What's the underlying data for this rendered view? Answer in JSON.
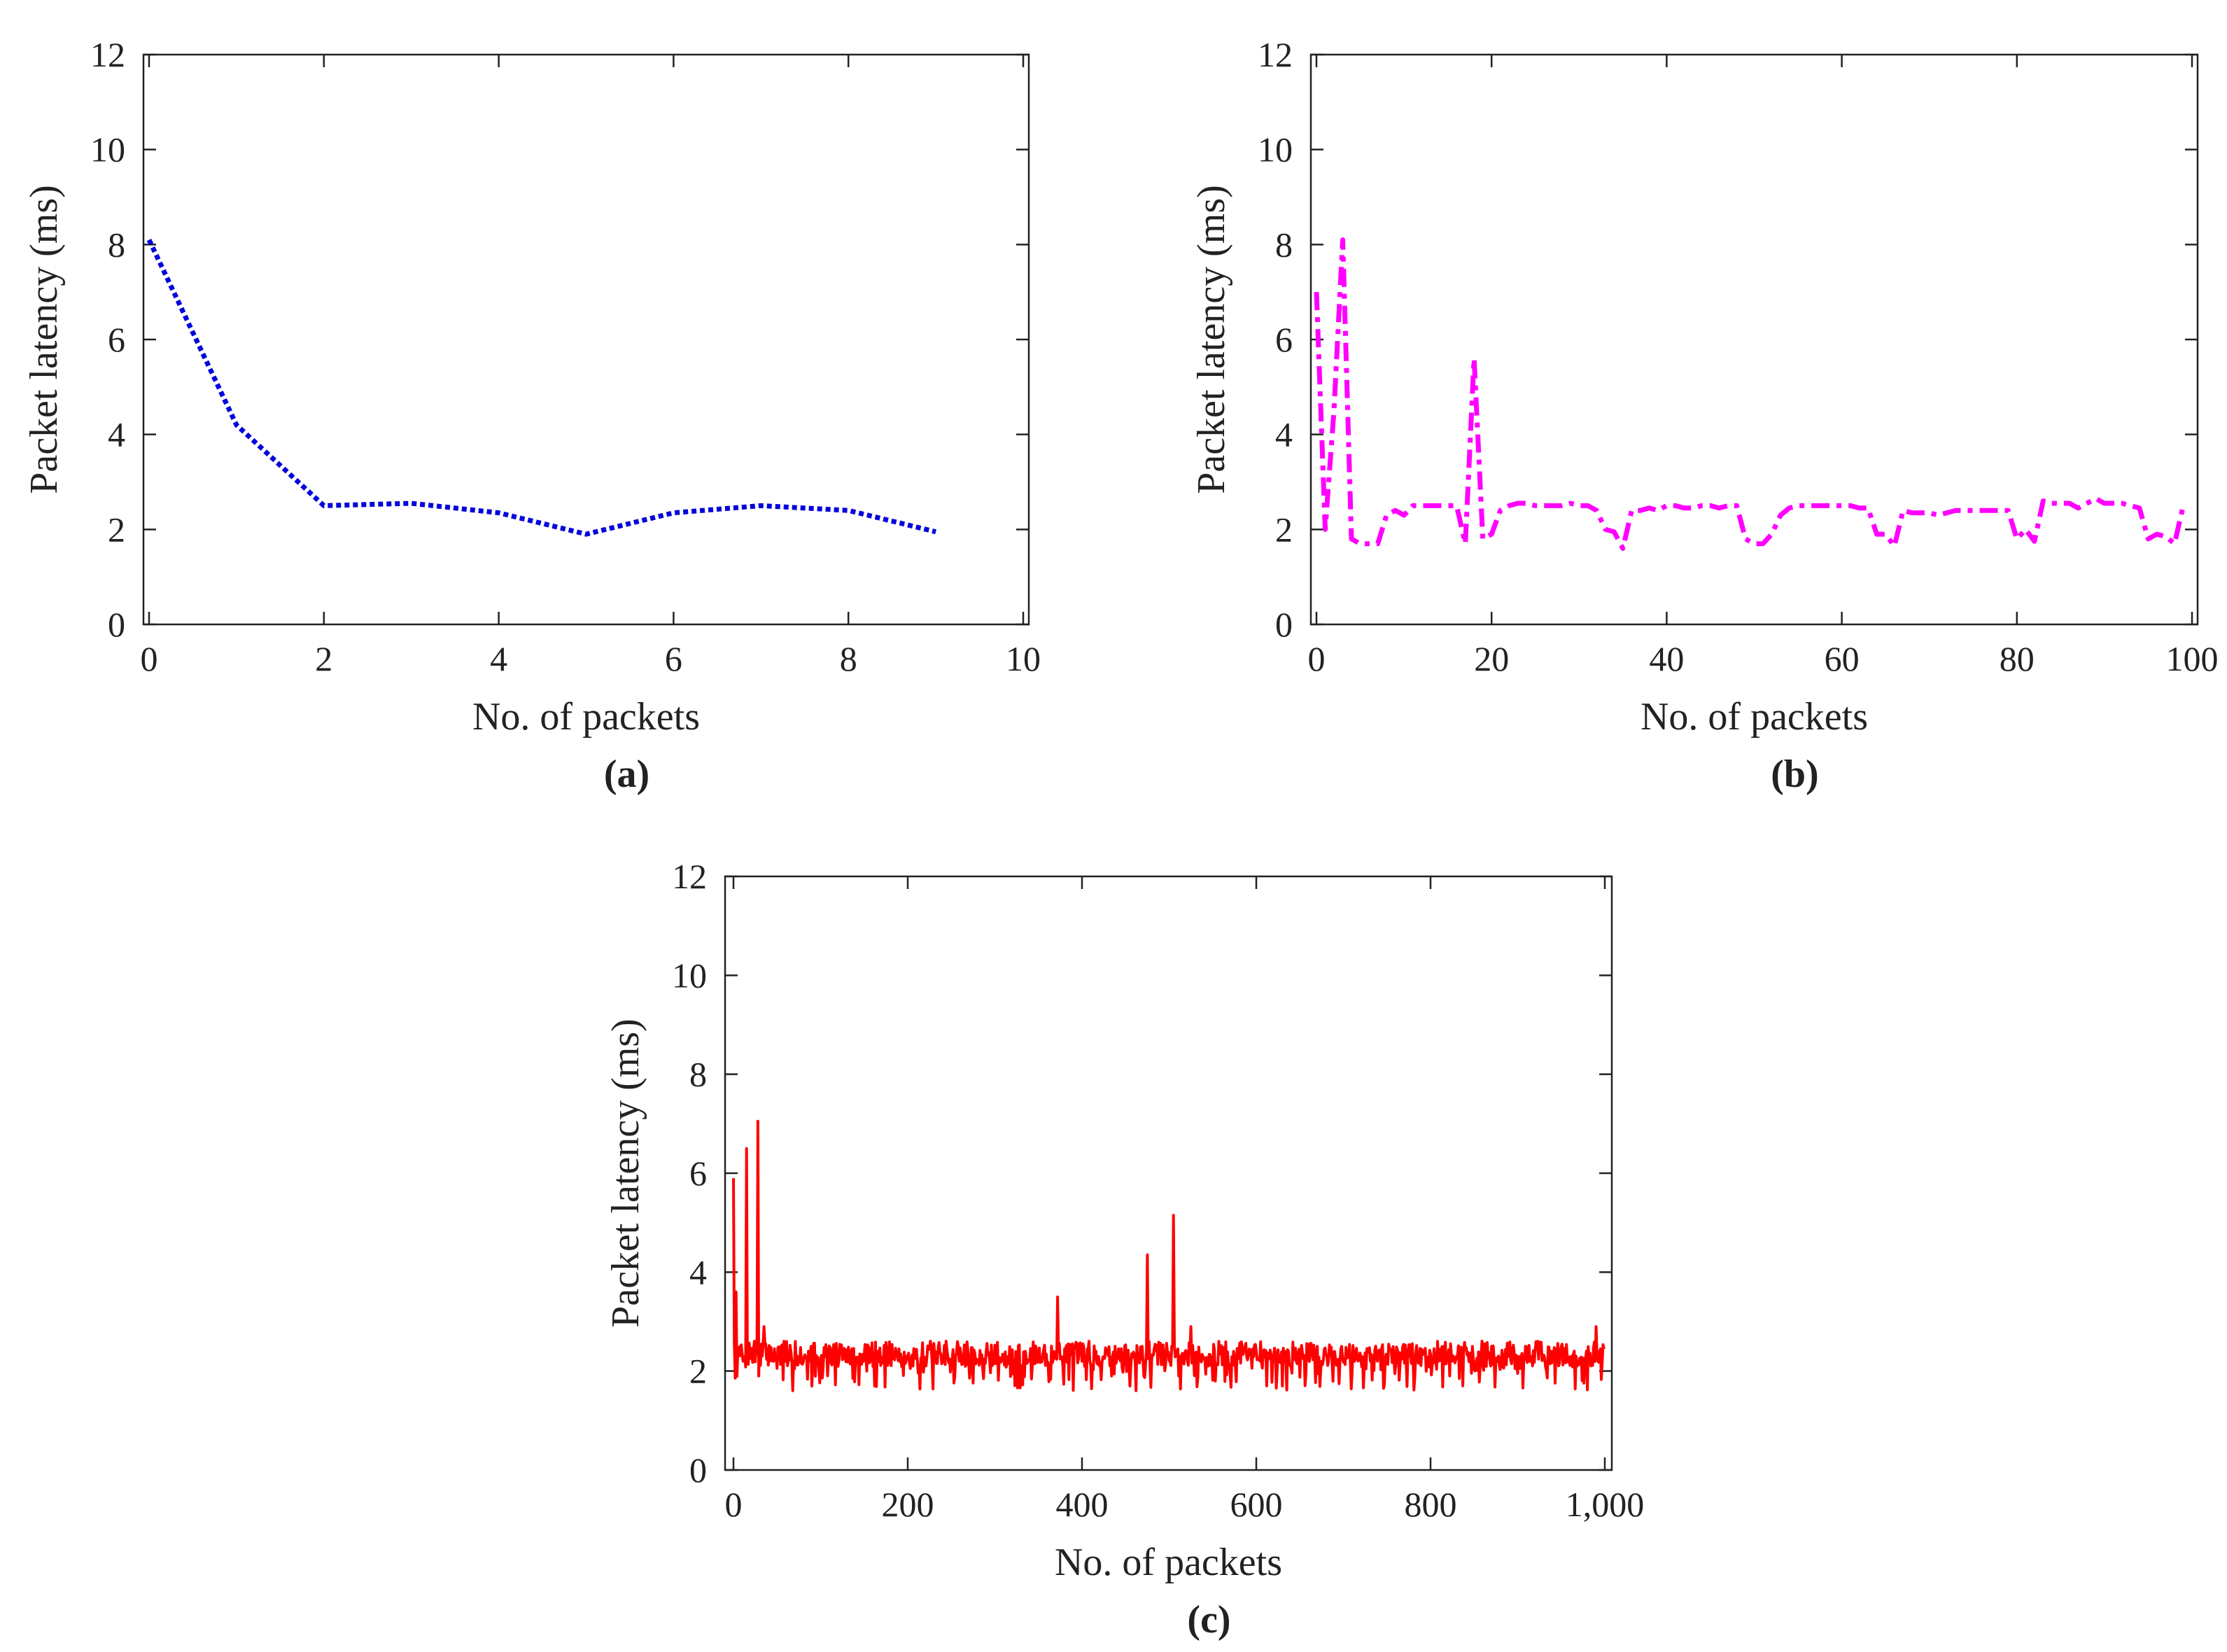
{
  "chart_data": [
    {
      "type": "line",
      "panel_label": "(a)",
      "xlabel": "No. of packets",
      "ylabel": "Packet latency (ms)",
      "xlim": [
        0,
        10
      ],
      "ylim": [
        0,
        12
      ],
      "xticks": [
        "0",
        "2",
        "4",
        "6",
        "8",
        "10"
      ],
      "yticks": [
        "0",
        "2",
        "4",
        "6",
        "8",
        "10",
        "12"
      ],
      "series": [
        {
          "name": "latency",
          "color": "#0000dd",
          "style": "dotted",
          "x": [
            0,
            1,
            2,
            3,
            4,
            5,
            6,
            7,
            8,
            9
          ],
          "y": [
            8.1,
            4.2,
            2.5,
            2.55,
            2.35,
            1.9,
            2.35,
            2.5,
            2.4,
            1.95
          ]
        }
      ]
    },
    {
      "type": "line",
      "panel_label": "(b)",
      "xlabel": "No. of packets",
      "ylabel": "Packet latency (ms)",
      "xlim": [
        0,
        100
      ],
      "ylim": [
        0,
        12
      ],
      "xticks": [
        "0",
        "20",
        "40",
        "60",
        "80",
        "100"
      ],
      "yticks": [
        "0",
        "2",
        "4",
        "6",
        "8",
        "10",
        "12"
      ],
      "series": [
        {
          "name": "latency",
          "color": "#ff00ff",
          "style": "dashdot",
          "x": [
            0,
            1,
            2,
            3,
            4,
            5,
            6,
            7,
            8,
            9,
            10,
            11,
            12,
            13,
            14,
            15,
            16,
            17,
            18,
            19,
            20,
            21,
            22,
            23,
            24,
            25,
            26,
            27,
            28,
            29,
            30,
            31,
            32,
            33,
            34,
            35,
            36,
            37,
            38,
            39,
            40,
            41,
            42,
            43,
            44,
            45,
            46,
            47,
            48,
            49,
            50,
            51,
            52,
            53,
            54,
            55,
            56,
            57,
            58,
            59,
            60,
            61,
            62,
            63,
            64,
            65,
            66,
            67,
            68,
            69,
            70,
            71,
            72,
            73,
            74,
            75,
            76,
            77,
            78,
            79,
            80,
            81,
            82,
            83,
            84,
            85,
            86,
            87,
            88,
            89,
            90,
            91,
            92,
            93,
            94,
            95,
            96,
            97,
            98,
            99
          ],
          "y": [
            7.0,
            2.0,
            4.5,
            8.1,
            1.8,
            1.7,
            1.7,
            1.7,
            2.3,
            2.4,
            2.3,
            2.5,
            2.5,
            2.5,
            2.5,
            2.5,
            2.5,
            1.7,
            5.6,
            1.8,
            1.9,
            2.4,
            2.5,
            2.55,
            2.55,
            2.5,
            2.5,
            2.5,
            2.5,
            2.55,
            2.5,
            2.5,
            2.4,
            2.0,
            1.95,
            1.6,
            2.4,
            2.4,
            2.45,
            2.4,
            2.5,
            2.5,
            2.45,
            2.45,
            2.5,
            2.5,
            2.45,
            2.5,
            2.5,
            1.8,
            1.7,
            1.7,
            1.9,
            2.3,
            2.45,
            2.5,
            2.5,
            2.5,
            2.5,
            2.5,
            2.5,
            2.5,
            2.45,
            2.45,
            1.9,
            1.9,
            1.65,
            2.4,
            2.35,
            2.35,
            2.35,
            2.3,
            2.35,
            2.4,
            2.4,
            2.4,
            2.4,
            2.4,
            2.4,
            2.4,
            1.8,
            2.0,
            1.75,
            2.6,
            2.55,
            2.55,
            2.55,
            2.45,
            2.55,
            2.65,
            2.55,
            2.55,
            2.55,
            2.5,
            2.45,
            1.8,
            1.9,
            1.85,
            1.7,
            2.5
          ]
        }
      ]
    },
    {
      "type": "line",
      "panel_label": "(c)",
      "xlabel": "No. of packets",
      "ylabel": "Packet latency (ms)",
      "xlim": [
        0,
        1000
      ],
      "ylim": [
        0,
        12
      ],
      "xticks": [
        "0",
        "200",
        "400",
        "600",
        "800",
        "1,000"
      ],
      "yticks": [
        "0",
        "2",
        "4",
        "6",
        "8",
        "10",
        "12"
      ],
      "series": [
        {
          "name": "latency",
          "color": "#ff0000",
          "style": "solid",
          "generator": {
            "n": 1000,
            "base": 2.35,
            "spread": 0.85,
            "seed": 7,
            "spikes": [
              [
                0,
                5.9
              ],
              [
                3,
                3.6
              ],
              [
                15,
                6.5
              ],
              [
                28,
                7.05
              ],
              [
                35,
                2.9
              ],
              [
                372,
                3.5
              ],
              [
                475,
                4.35
              ],
              [
                505,
                5.15
              ],
              [
                525,
                2.9
              ],
              [
                990,
                2.9
              ]
            ]
          }
        }
      ]
    }
  ]
}
